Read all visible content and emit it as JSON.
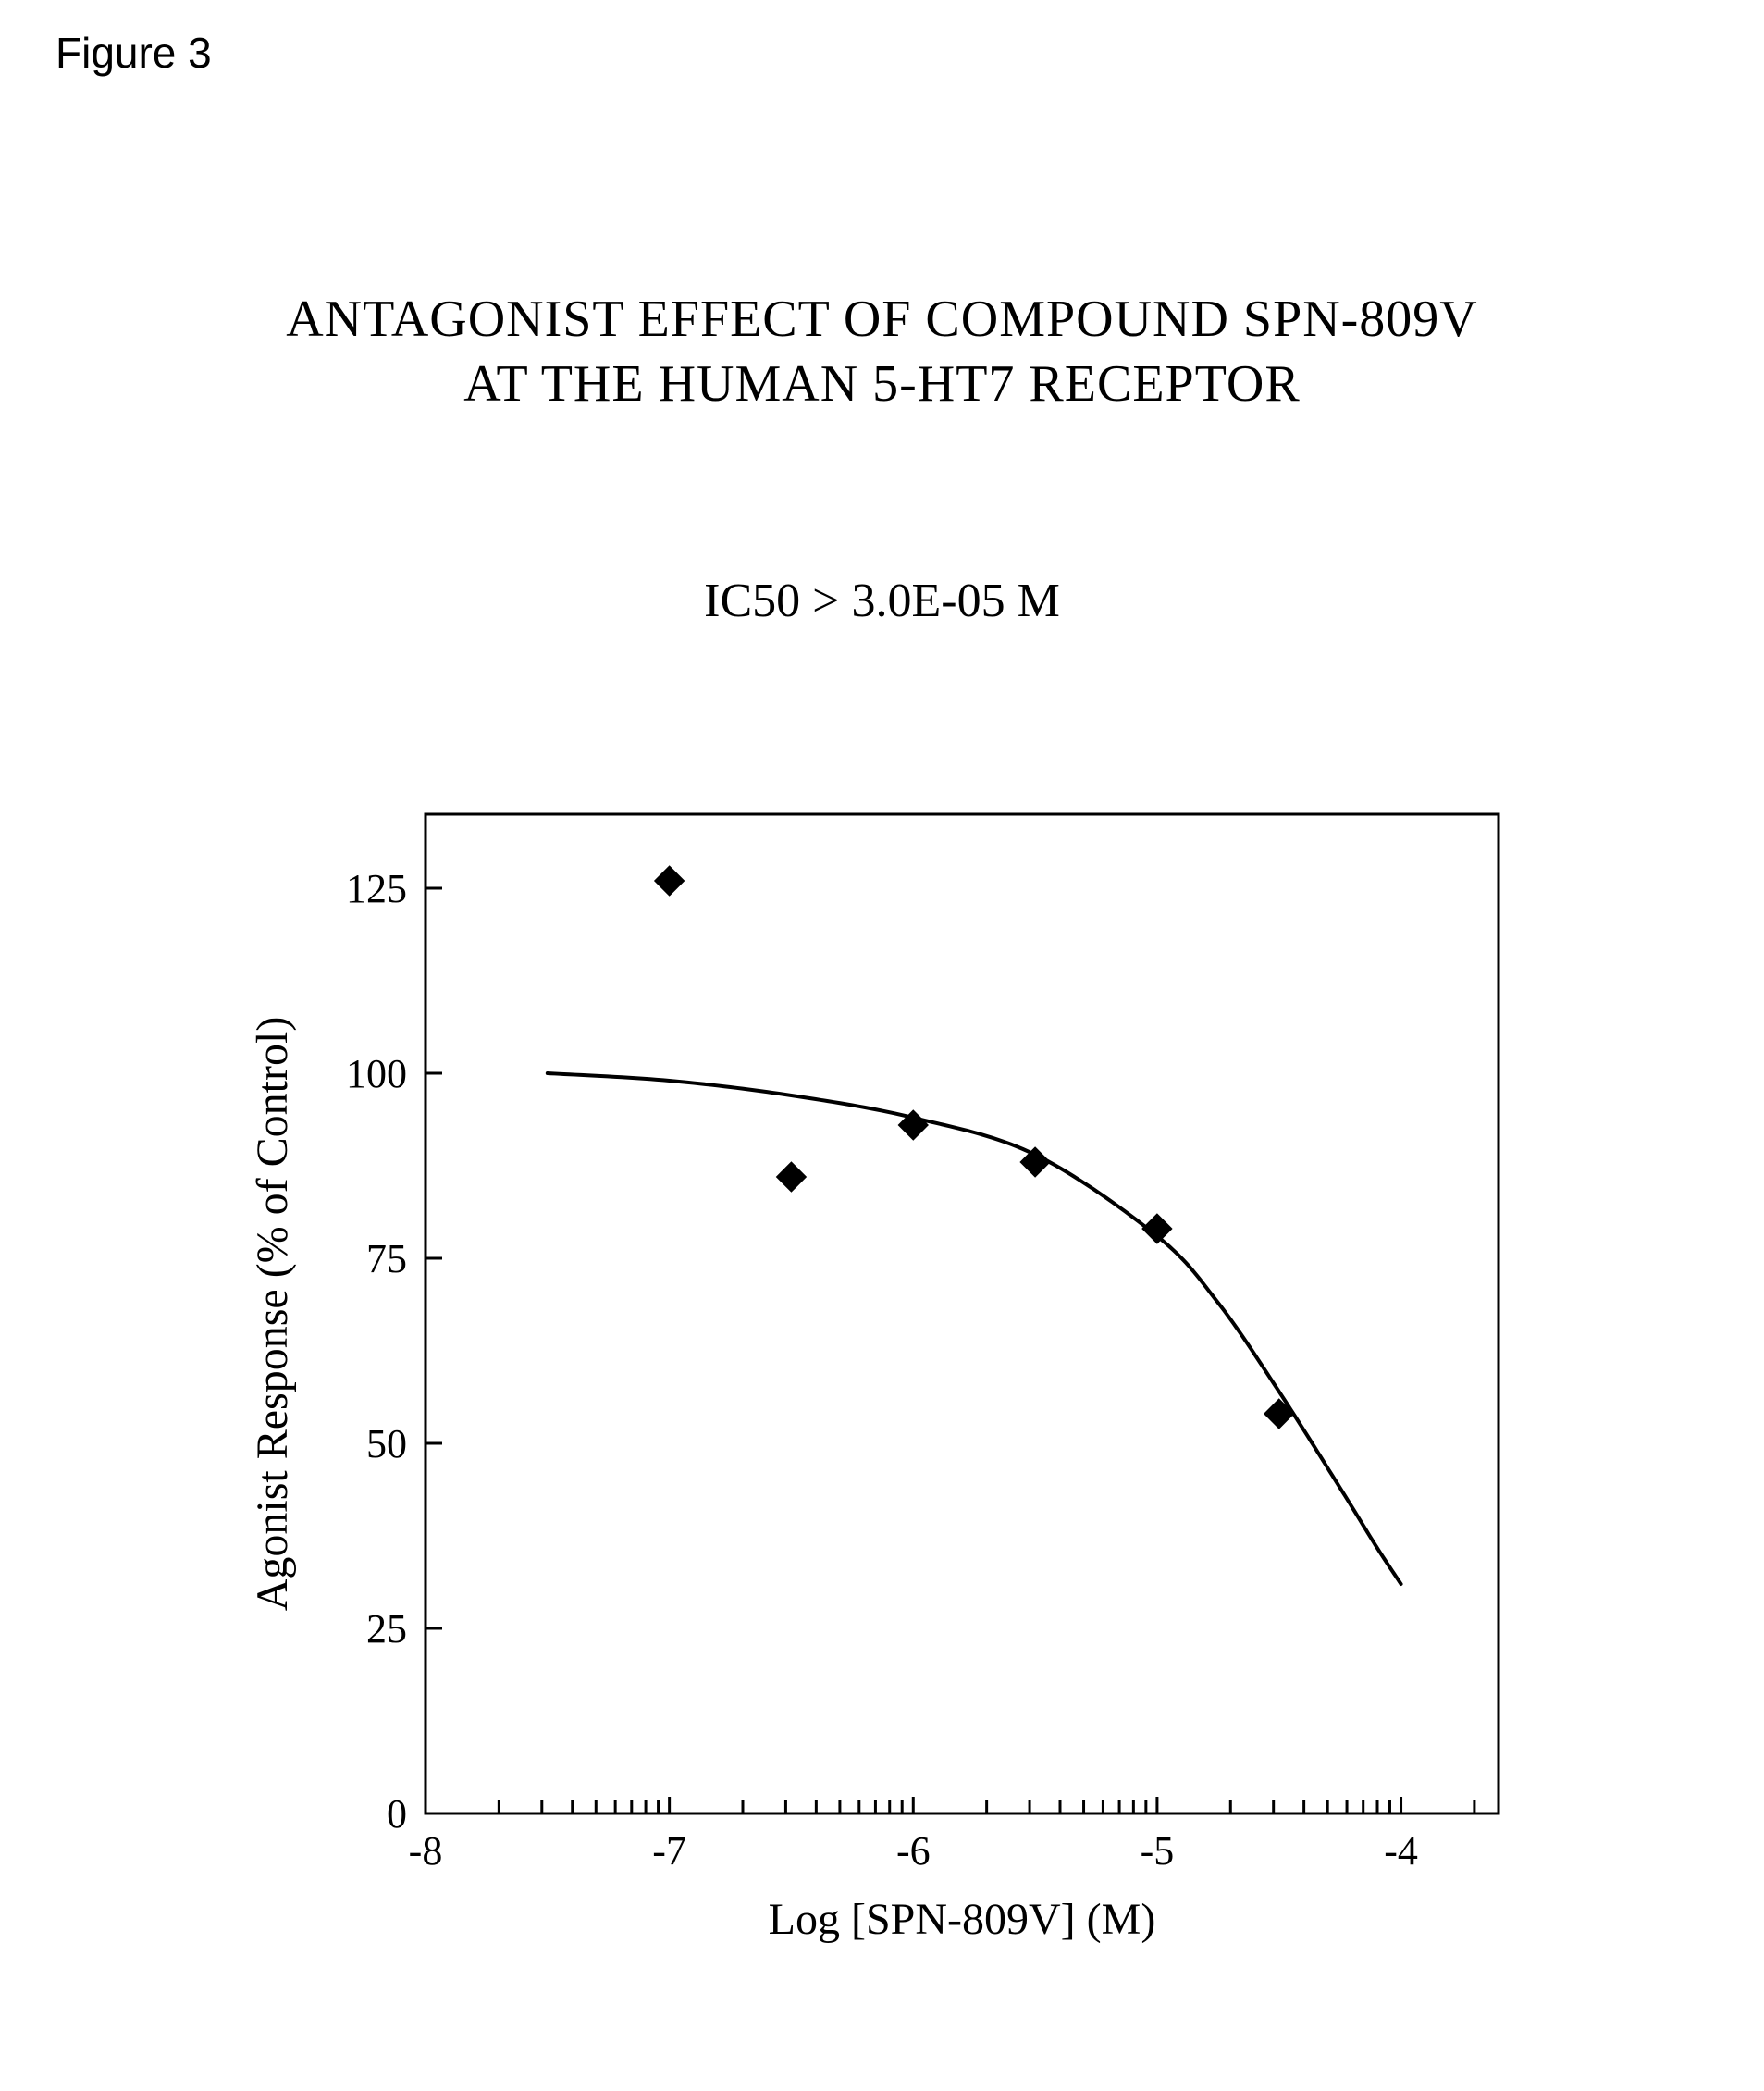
{
  "figure_label": "Figure 3",
  "title_line1": "ANTAGONIST EFFECT OF COMPOUND SPN-809V",
  "title_line2": "AT THE HUMAN 5-HT7 RECEPTOR",
  "subtitle": "IC50 > 3.0E-05 M",
  "chart": {
    "type": "scatter-with-fit-curve",
    "xlabel": "Log [SPN-809V] (M)",
    "ylabel": "Agonist Response (% of Control)",
    "xlim": [
      -8,
      -3.6
    ],
    "ylim": [
      0,
      135
    ],
    "x_major_ticks": [
      -8,
      -7,
      -6,
      -5,
      -4
    ],
    "x_log_minor": true,
    "y_ticks": [
      0,
      25,
      50,
      75,
      100,
      125
    ],
    "background_color": "#ffffff",
    "axis_color": "#000000",
    "axis_width": 3,
    "tick_length_major": 18,
    "tick_length_minor": 14,
    "tick_label_fontsize": 44,
    "axis_label_fontsize": 48,
    "marker": {
      "shape": "diamond",
      "size": 16,
      "fill": "#000000",
      "stroke": "#000000"
    },
    "curve": {
      "color": "#000000",
      "width": 4
    },
    "data_points": [
      {
        "x": -7.0,
        "y": 126
      },
      {
        "x": -6.5,
        "y": 86
      },
      {
        "x": -6.0,
        "y": 93
      },
      {
        "x": -5.5,
        "y": 88
      },
      {
        "x": -5.0,
        "y": 79
      },
      {
        "x": -4.5,
        "y": 54
      }
    ],
    "fit_curve": [
      {
        "x": -7.5,
        "y": 100
      },
      {
        "x": -7.0,
        "y": 99
      },
      {
        "x": -6.5,
        "y": 97
      },
      {
        "x": -6.0,
        "y": 94
      },
      {
        "x": -5.5,
        "y": 89
      },
      {
        "x": -5.0,
        "y": 78
      },
      {
        "x": -4.75,
        "y": 69
      },
      {
        "x": -4.5,
        "y": 57
      },
      {
        "x": -4.25,
        "y": 44
      },
      {
        "x": -4.1,
        "y": 36
      },
      {
        "x": -4.0,
        "y": 31
      }
    ]
  }
}
